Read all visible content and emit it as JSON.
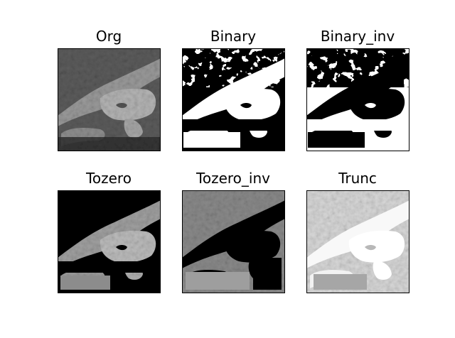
{
  "figure": {
    "background": "#ffffff",
    "panels": [
      {
        "title": "Org",
        "variant": "org"
      },
      {
        "title": "Binary",
        "variant": "binary"
      },
      {
        "title": "Binary_inv",
        "variant": "binary_inv"
      },
      {
        "title": "Tozero",
        "variant": "tozero"
      },
      {
        "title": "Tozero_inv",
        "variant": "tozero_inv"
      },
      {
        "title": "Trunc",
        "variant": "trunc"
      }
    ]
  }
}
